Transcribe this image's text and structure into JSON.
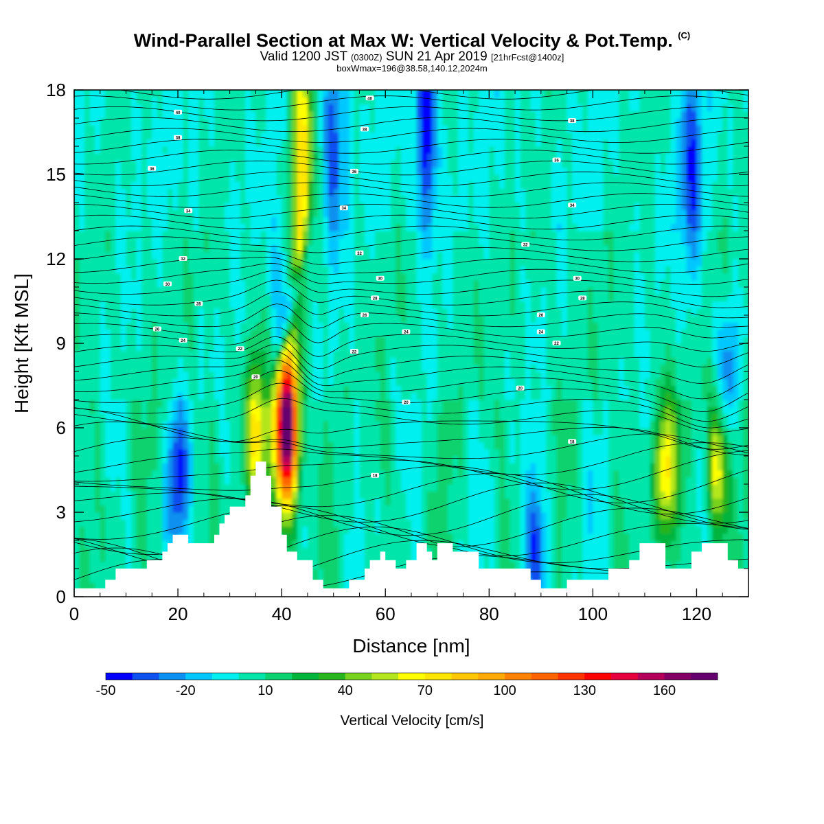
{
  "header": {
    "title": "Wind-Parallel Section at Max W: Vertical Velocity & Pot.Temp.",
    "copyright": "(C)",
    "valid_pre": "Valid 1200 JST",
    "valid_utc": "(0300Z)",
    "valid_date": "SUN 21 Apr 2019",
    "forecast": "[21hrFcst@1400z]",
    "box_info": "boxWmax=196@38.58,140.12,2024m"
  },
  "chart_data": {
    "type": "heatmap",
    "title": "Wind-Parallel Section at Max W: Vertical Velocity & Pot.Temp.",
    "xlabel": "Distance [nm]",
    "ylabel": "Height [Kft MSL]",
    "xlim": [
      0,
      130
    ],
    "ylim": [
      0,
      18
    ],
    "x_ticks": [
      "0",
      "20",
      "40",
      "60",
      "80",
      "100",
      "120"
    ],
    "y_ticks": [
      "0",
      "3",
      "6",
      "9",
      "12",
      "15",
      "18"
    ],
    "colorbar": {
      "title": "Vertical Velocity [cm/s]",
      "levels": [
        -50,
        -40,
        -30,
        -20,
        -10,
        0,
        10,
        20,
        30,
        40,
        50,
        60,
        70,
        80,
        90,
        100,
        110,
        120,
        130,
        140,
        150,
        160,
        170,
        180
      ],
      "tick_labels": [
        "-50",
        "-20",
        "10",
        "40",
        "70",
        "100",
        "130",
        "160"
      ],
      "colors": [
        "#0000ff",
        "#0f50f0",
        "#0a90f0",
        "#00c8ff",
        "#00f0f0",
        "#00e6aa",
        "#0ad26e",
        "#00b43c",
        "#28b41e",
        "#78d21e",
        "#b4e61e",
        "#ffff00",
        "#ffe600",
        "#ffc800",
        "#ffaa00",
        "#ff8200",
        "#ff6400",
        "#ff3200",
        "#ff0000",
        "#e6003c",
        "#b4005a",
        "#820064",
        "#64006e"
      ]
    },
    "terrain_kft": [
      [
        0,
        0.3
      ],
      [
        5,
        0.3
      ],
      [
        6,
        0.6
      ],
      [
        7,
        0.6
      ],
      [
        8,
        1.0
      ],
      [
        13,
        1.0
      ],
      [
        14,
        1.3
      ],
      [
        16,
        1.3
      ],
      [
        17,
        1.6
      ],
      [
        18,
        1.9
      ],
      [
        19,
        2.2
      ],
      [
        21,
        2.2
      ],
      [
        22,
        1.9
      ],
      [
        26,
        1.9
      ],
      [
        27,
        2.2
      ],
      [
        28,
        2.6
      ],
      [
        29,
        2.9
      ],
      [
        30,
        3.2
      ],
      [
        33,
        3.6
      ],
      [
        34,
        4.3
      ],
      [
        35,
        4.8
      ],
      [
        37,
        4.3
      ],
      [
        38,
        3.2
      ],
      [
        40,
        2.2
      ],
      [
        41,
        1.6
      ],
      [
        43,
        1.3
      ],
      [
        46,
        0.6
      ],
      [
        48,
        0.3
      ],
      [
        52,
        0.3
      ],
      [
        53,
        0.6
      ],
      [
        56,
        1.0
      ],
      [
        57,
        1.3
      ],
      [
        59,
        1.6
      ],
      [
        60,
        1.3
      ],
      [
        62,
        1.0
      ],
      [
        64,
        1.3
      ],
      [
        66,
        1.9
      ],
      [
        68,
        1.6
      ],
      [
        69,
        1.3
      ],
      [
        70,
        1.9
      ],
      [
        73,
        1.6
      ],
      [
        76,
        1.6
      ],
      [
        78,
        1.0
      ],
      [
        86,
        1.0
      ],
      [
        88,
        0.6
      ],
      [
        90,
        0.3
      ],
      [
        93,
        0.3
      ],
      [
        95,
        0.6
      ],
      [
        100,
        0.6
      ],
      [
        103,
        1.0
      ],
      [
        107,
        1.3
      ],
      [
        109,
        1.9
      ],
      [
        112,
        1.9
      ],
      [
        114,
        1.0
      ],
      [
        117,
        1.0
      ],
      [
        119,
        1.6
      ],
      [
        121,
        1.9
      ],
      [
        123,
        1.9
      ],
      [
        126,
        1.3
      ],
      [
        128,
        1.0
      ],
      [
        130,
        1.0
      ]
    ],
    "theta_contours_K": [
      {
        "value": "40",
        "x": 20,
        "y": 17.2
      },
      {
        "value": "40",
        "x": 57,
        "y": 17.7
      },
      {
        "value": "38",
        "x": 20,
        "y": 16.3
      },
      {
        "value": "38",
        "x": 56,
        "y": 16.6
      },
      {
        "value": "38",
        "x": 96,
        "y": 16.9
      },
      {
        "value": "36",
        "x": 15,
        "y": 15.2
      },
      {
        "value": "36",
        "x": 54,
        "y": 15.1
      },
      {
        "value": "36",
        "x": 93,
        "y": 15.5
      },
      {
        "value": "34",
        "x": 22,
        "y": 13.7
      },
      {
        "value": "34",
        "x": 52,
        "y": 13.8
      },
      {
        "value": "34",
        "x": 96,
        "y": 13.9
      },
      {
        "value": "32",
        "x": 21,
        "y": 12.0
      },
      {
        "value": "32",
        "x": 55,
        "y": 12.2
      },
      {
        "value": "32",
        "x": 87,
        "y": 12.5
      },
      {
        "value": "30",
        "x": 18,
        "y": 11.1
      },
      {
        "value": "30",
        "x": 59,
        "y": 11.3
      },
      {
        "value": "30",
        "x": 97,
        "y": 11.3
      },
      {
        "value": "28",
        "x": 24,
        "y": 10.4
      },
      {
        "value": "28",
        "x": 58,
        "y": 10.6
      },
      {
        "value": "28",
        "x": 98,
        "y": 10.6
      },
      {
        "value": "26",
        "x": 16,
        "y": 9.5
      },
      {
        "value": "26",
        "x": 56,
        "y": 10.0
      },
      {
        "value": "26",
        "x": 90,
        "y": 10.0
      },
      {
        "value": "24",
        "x": 21,
        "y": 9.1
      },
      {
        "value": "24",
        "x": 64,
        "y": 9.4
      },
      {
        "value": "24",
        "x": 90,
        "y": 9.4
      },
      {
        "value": "22",
        "x": 32,
        "y": 8.8
      },
      {
        "value": "22",
        "x": 54,
        "y": 8.7
      },
      {
        "value": "22",
        "x": 93,
        "y": 9.0
      },
      {
        "value": "20",
        "x": 35,
        "y": 7.8
      },
      {
        "value": "20",
        "x": 64,
        "y": 6.9
      },
      {
        "value": "20",
        "x": 86,
        "y": 7.4
      },
      {
        "value": "18",
        "x": 58,
        "y": 4.3
      },
      {
        "value": "18",
        "x": 96,
        "y": 5.5
      }
    ],
    "w_features": [
      {
        "x": 41,
        "y": 6.0,
        "value": 196
      },
      {
        "x": 35,
        "y": 5.8,
        "value": 70
      },
      {
        "x": 44,
        "y": 16.5,
        "value": 70
      },
      {
        "x": 114,
        "y": 4.5,
        "value": 70
      },
      {
        "x": 124,
        "y": 4.6,
        "value": 70
      },
      {
        "x": 20,
        "y": 4.3,
        "value": -40
      },
      {
        "x": 40,
        "y": 10.5,
        "value": -30
      },
      {
        "x": 50,
        "y": 16.5,
        "value": -40
      },
      {
        "x": 68,
        "y": 16.8,
        "value": -50
      },
      {
        "x": 119,
        "y": 15.0,
        "value": -40
      },
      {
        "x": 126,
        "y": 8.0,
        "value": -30
      },
      {
        "x": 89,
        "y": 1.8,
        "value": -40
      }
    ]
  }
}
